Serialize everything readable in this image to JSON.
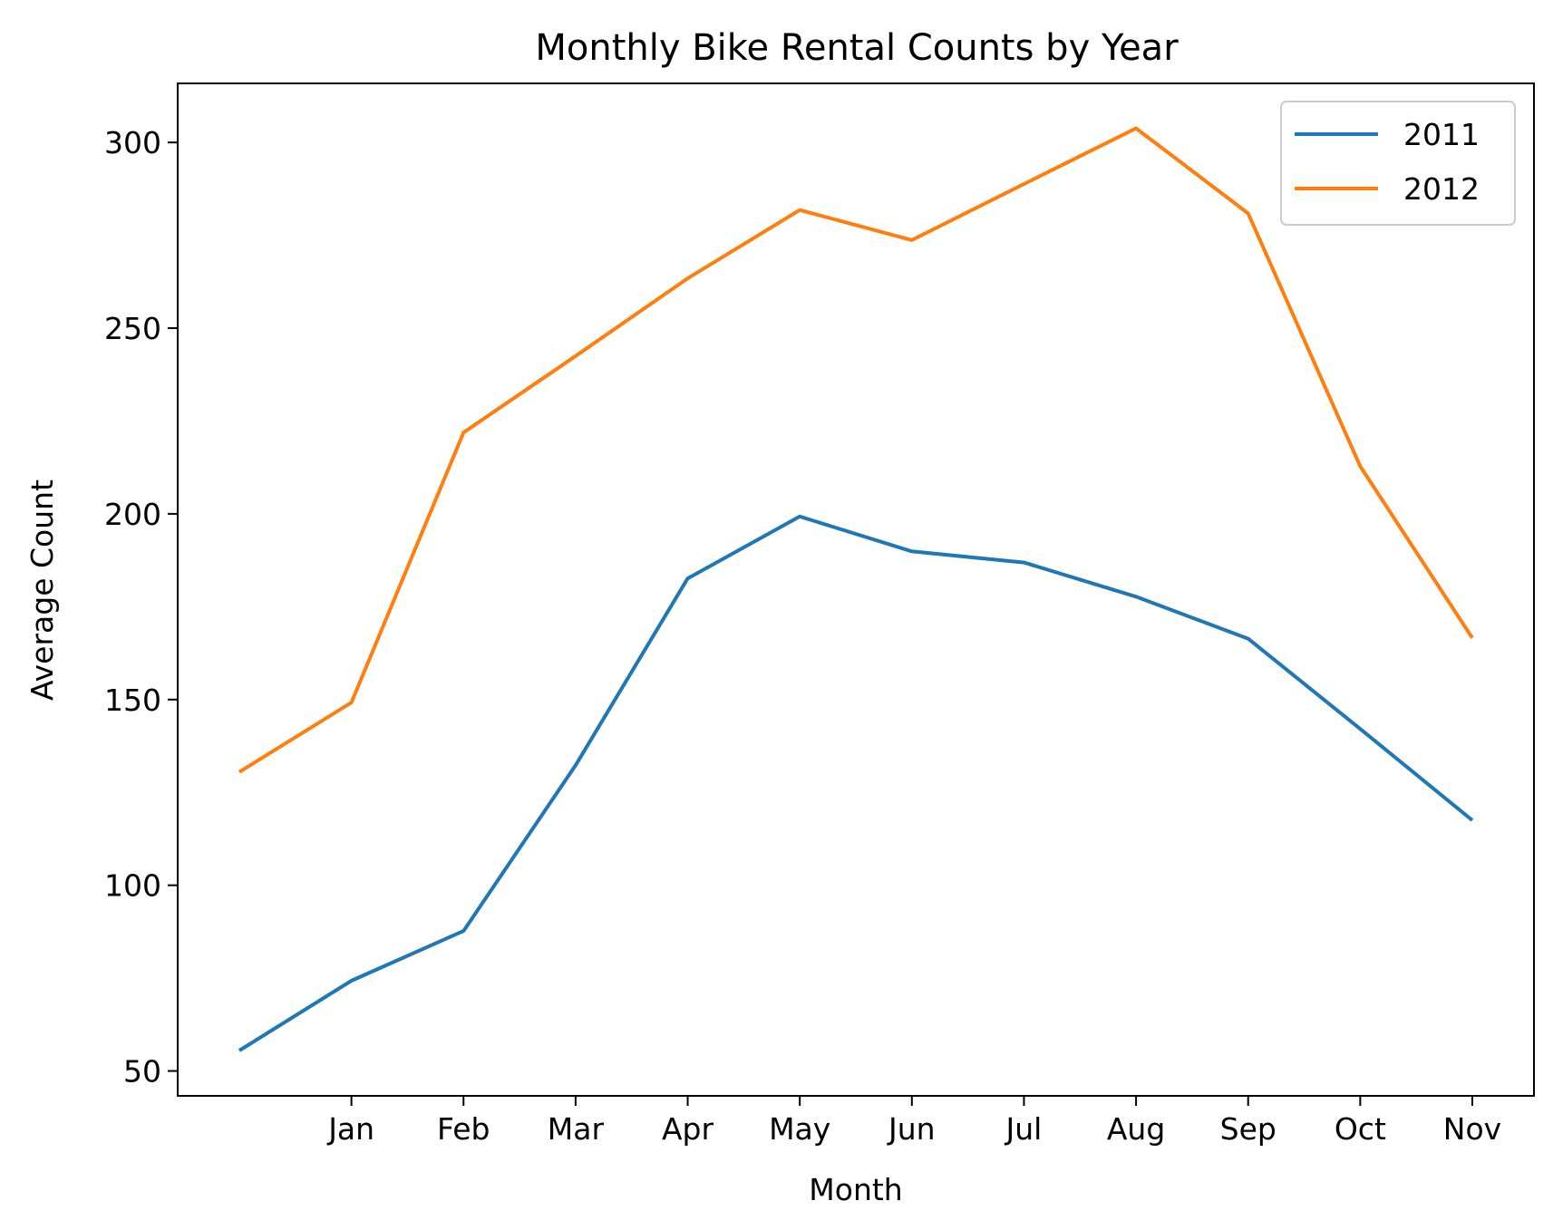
{
  "chart_data": {
    "type": "line",
    "title": "Monthly Bike Rental Counts by Year",
    "xlabel": "Month",
    "ylabel": "Average Count",
    "x": [
      0,
      1,
      2,
      3,
      4,
      5,
      6,
      7,
      8,
      9,
      10,
      11
    ],
    "x_tick_positions": [
      1,
      2,
      3,
      4,
      5,
      6,
      7,
      8,
      9,
      10,
      11
    ],
    "x_tick_labels": [
      "Jan",
      "Feb",
      "Mar",
      "Apr",
      "May",
      "Jun",
      "Jul",
      "Aug",
      "Sep",
      "Oct",
      "Nov"
    ],
    "xlim": [
      -0.55,
      11.55
    ],
    "ylim": [
      43.3,
      315.9
    ],
    "y_ticks": [
      50,
      100,
      150,
      200,
      250,
      300
    ],
    "grid": false,
    "legend_position": "top-right",
    "series": [
      {
        "name": "2011",
        "color": "#1f77b4",
        "values": [
          55.5,
          74.3,
          87.7,
          132.3,
          182.6,
          199.3,
          189.9,
          186.9,
          177.7,
          166.4,
          142.1,
          117.5
        ]
      },
      {
        "name": "2012",
        "color": "#ff7f0e",
        "values": [
          130.5,
          149.2,
          221.9,
          242.5,
          263.4,
          281.8,
          273.7,
          288.8,
          303.8,
          280.9,
          212.8,
          166.6
        ]
      }
    ]
  }
}
